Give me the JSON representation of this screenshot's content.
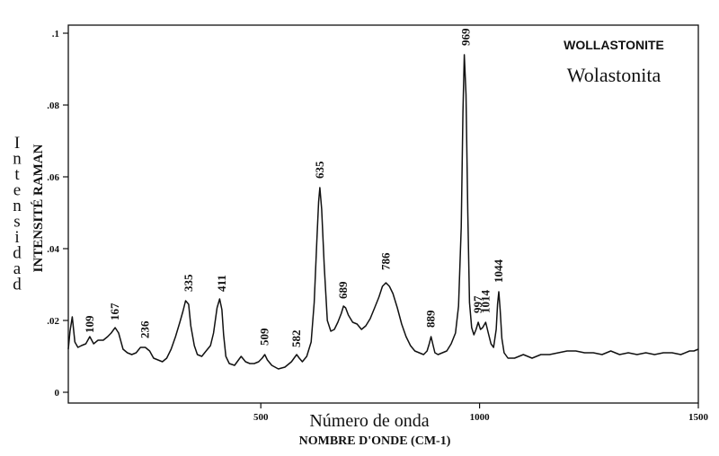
{
  "chart_data": {
    "type": "line",
    "title": "WOLLASTONITE",
    "subtitle": "Wolastonita",
    "xlabel": "Número de onda",
    "xlabel_secondary": "NOMBRE D'ONDE (CM-1)",
    "ylabel": "INTENSITÉ RAMAN",
    "ylabel_secondary": "Intensidad",
    "xlim": [
      60,
      1500
    ],
    "ylim": [
      0,
      0.1
    ],
    "xticks": [
      {
        "value": 500,
        "label": "500"
      },
      {
        "value": 1000,
        "label": "1000"
      },
      {
        "value": 1500,
        "label": "1500"
      }
    ],
    "yticks": [
      {
        "value": 0,
        "label": "0"
      },
      {
        "value": 0.02,
        "label": ".02"
      },
      {
        "value": 0.04,
        "label": ".04"
      },
      {
        "value": 0.06,
        "label": ".06"
      },
      {
        "value": 0.08,
        "label": ".08"
      },
      {
        "value": 0.1,
        "label": ".1"
      }
    ],
    "grid": false,
    "line_color": "#111111",
    "series": [
      {
        "x": [
          60,
          64,
          69,
          75,
          82,
          90,
          100,
          109,
          118,
          128,
          140,
          150,
          158,
          167,
          175,
          185,
          195,
          205,
          215,
          225,
          236,
          246,
          255,
          265,
          275,
          285,
          295,
          305,
          315,
          322,
          328,
          335,
          340,
          348,
          355,
          365,
          375,
          385,
          392,
          400,
          406,
          411,
          415,
          420,
          428,
          440,
          455,
          465,
          475,
          485,
          495,
          503,
          509,
          515,
          525,
          540,
          555,
          570,
          576,
          582,
          588,
          595,
          605,
          615,
          622,
          628,
          632,
          635,
          639,
          645,
          652,
          660,
          668,
          676,
          684,
          689,
          694,
          700,
          710,
          720,
          730,
          740,
          750,
          760,
          770,
          778,
          786,
          794,
          802,
          812,
          822,
          832,
          842,
          852,
          862,
          872,
          880,
          885,
          889,
          893,
          898,
          905,
          915,
          925,
          935,
          945,
          952,
          958,
          962,
          965,
          969,
          973,
          977,
          982,
          987,
          992,
          997,
          1002,
          1007,
          1014,
          1020,
          1026,
          1032,
          1038,
          1041,
          1044,
          1047,
          1051,
          1056,
          1065,
          1080,
          1100,
          1120,
          1140,
          1160,
          1180,
          1200,
          1220,
          1240,
          1260,
          1280,
          1300,
          1320,
          1340,
          1360,
          1380,
          1400,
          1420,
          1440,
          1460,
          1480,
          1490,
          1500
        ],
        "y": [
          0.012,
          0.017,
          0.021,
          0.014,
          0.0125,
          0.013,
          0.0135,
          0.0155,
          0.0135,
          0.0145,
          0.0145,
          0.0155,
          0.0165,
          0.018,
          0.0165,
          0.012,
          0.011,
          0.0105,
          0.011,
          0.0125,
          0.0125,
          0.0115,
          0.0095,
          0.009,
          0.0085,
          0.0095,
          0.012,
          0.0155,
          0.0195,
          0.0225,
          0.0255,
          0.0245,
          0.0185,
          0.013,
          0.0105,
          0.01,
          0.0115,
          0.013,
          0.0165,
          0.0235,
          0.026,
          0.023,
          0.016,
          0.01,
          0.008,
          0.0075,
          0.01,
          0.0085,
          0.008,
          0.008,
          0.0085,
          0.0095,
          0.0105,
          0.009,
          0.0075,
          0.0065,
          0.007,
          0.0085,
          0.0095,
          0.0105,
          0.0095,
          0.0085,
          0.01,
          0.014,
          0.025,
          0.042,
          0.053,
          0.057,
          0.051,
          0.035,
          0.02,
          0.017,
          0.0175,
          0.0195,
          0.022,
          0.024,
          0.0235,
          0.0215,
          0.0195,
          0.019,
          0.0175,
          0.0185,
          0.0205,
          0.0235,
          0.0265,
          0.0295,
          0.0305,
          0.0295,
          0.0275,
          0.0235,
          0.019,
          0.0155,
          0.013,
          0.0115,
          0.011,
          0.0105,
          0.0115,
          0.0135,
          0.0155,
          0.0135,
          0.011,
          0.0105,
          0.011,
          0.0115,
          0.0135,
          0.0165,
          0.024,
          0.046,
          0.078,
          0.094,
          0.083,
          0.05,
          0.025,
          0.018,
          0.016,
          0.0175,
          0.0195,
          0.0175,
          0.018,
          0.0195,
          0.0165,
          0.0135,
          0.0125,
          0.0175,
          0.0245,
          0.028,
          0.023,
          0.015,
          0.011,
          0.0095,
          0.0095,
          0.0105,
          0.0095,
          0.0105,
          0.0105,
          0.011,
          0.0115,
          0.0115,
          0.011,
          0.011,
          0.0105,
          0.0115,
          0.0105,
          0.011,
          0.0105,
          0.011,
          0.0105,
          0.011,
          0.011,
          0.0105,
          0.0115,
          0.0115,
          0.012
        ]
      }
    ],
    "annotations": [
      {
        "x": 109,
        "y": 0.015,
        "text": "109"
      },
      {
        "x": 167,
        "y": 0.0185,
        "text": "167"
      },
      {
        "x": 236,
        "y": 0.0135,
        "text": "236"
      },
      {
        "x": 335,
        "y": 0.0265,
        "text": "335"
      },
      {
        "x": 411,
        "y": 0.0265,
        "text": "411"
      },
      {
        "x": 509,
        "y": 0.0115,
        "text": "509"
      },
      {
        "x": 582,
        "y": 0.011,
        "text": "582"
      },
      {
        "x": 635,
        "y": 0.058,
        "text": "635"
      },
      {
        "x": 689,
        "y": 0.0245,
        "text": "689"
      },
      {
        "x": 786,
        "y": 0.0325,
        "text": "786"
      },
      {
        "x": 889,
        "y": 0.0165,
        "text": "889"
      },
      {
        "x": 969,
        "y": 0.095,
        "text": "969"
      },
      {
        "x": 997,
        "y": 0.0205,
        "text": "997"
      },
      {
        "x": 1014,
        "y": 0.0205,
        "text": "1014"
      },
      {
        "x": 1044,
        "y": 0.029,
        "text": "1044"
      }
    ]
  }
}
